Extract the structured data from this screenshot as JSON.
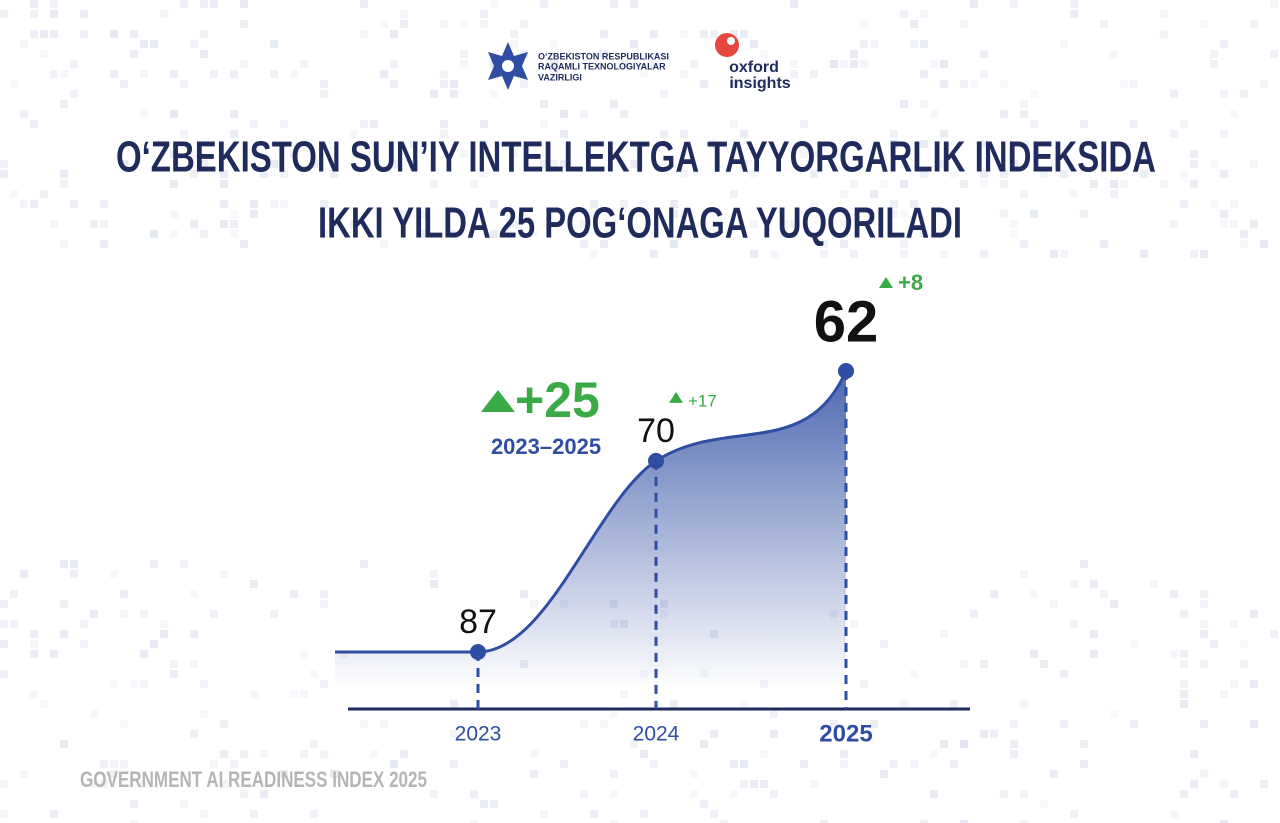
{
  "logos": {
    "ministry": [
      "O‘ZBEKISTON RESPUBLIKASI",
      "RAQAMLI TEXNOLOGIYALAR",
      "VAZIRLIGI"
    ],
    "partner": [
      "oxford",
      "insights"
    ]
  },
  "chart_data": {
    "type": "line",
    "title": [
      "O‘ZBEKISTON SUN’IY INTELLEKTGA TAYYORGARLIK INDEKSIDA",
      "IKKI YILDA 25 POG‘ONAGA YUQORILADI"
    ],
    "categories": [
      "2023",
      "2024",
      "2025"
    ],
    "values": [
      87,
      70,
      62
    ],
    "changes": [
      null,
      17,
      8
    ],
    "change_labels": [
      null,
      "+17",
      "+8"
    ],
    "total_change": 25,
    "total_change_label": "+25",
    "total_period": "2023–2025",
    "color": "#2f4ea3",
    "up_color": "#3aaa47"
  },
  "source": "GOVERNMENT AI READINESS INDEX 2025"
}
